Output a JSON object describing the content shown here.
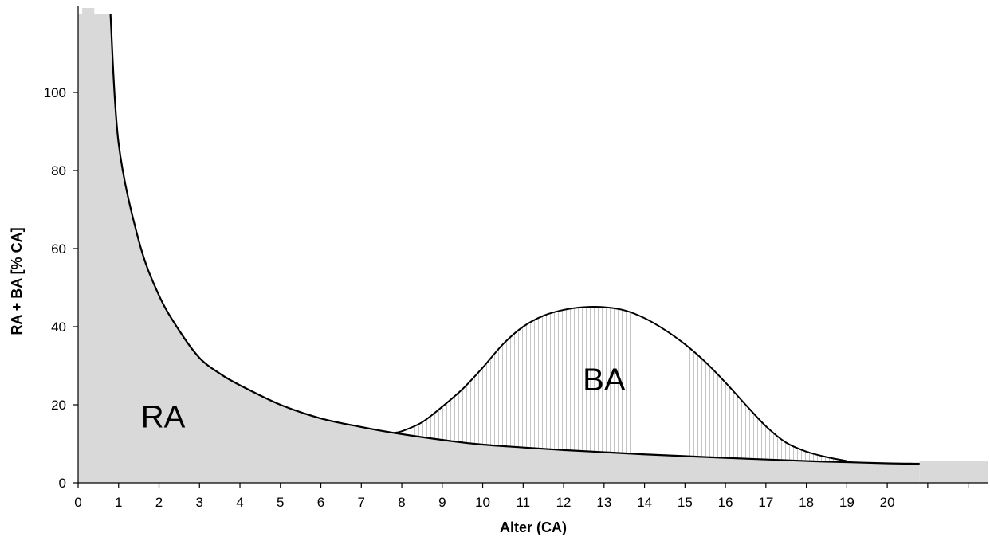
{
  "chart_data": {
    "type": "area",
    "xlabel": "Alter (CA)",
    "ylabel": "RA + BA [% CA]",
    "xlim": [
      0,
      22.5
    ],
    "ylim": [
      0,
      120
    ],
    "xticks": [
      0,
      1,
      2,
      3,
      4,
      5,
      6,
      7,
      8,
      9,
      10,
      11,
      12,
      13,
      14,
      15,
      16,
      17,
      18,
      19,
      20
    ],
    "xminor_ticks": [
      21,
      22
    ],
    "yticks": [
      0,
      20,
      40,
      60,
      80,
      100
    ],
    "grid": false,
    "legend": "none",
    "annotations": [
      {
        "text": "RA",
        "x": 2.1,
        "y": 17
      },
      {
        "text": "BA",
        "x": 13.0,
        "y": 26.5
      }
    ],
    "series": [
      {
        "name": "RA",
        "fill": "#d9d9d9",
        "x": [
          0.0,
          0.8,
          1.0,
          1.5,
          2.0,
          2.5,
          3.0,
          3.5,
          4.0,
          5.0,
          6.0,
          7.0,
          7.8,
          9.0,
          10.0,
          12.0,
          14.0,
          16.0,
          18.0,
          19.0,
          20.0,
          20.8
        ],
        "values": [
          120,
          120,
          87,
          62,
          48,
          39,
          32,
          28,
          25,
          20,
          16.5,
          14.3,
          12.8,
          11.0,
          9.8,
          8.4,
          7.3,
          6.4,
          5.6,
          5.3,
          5.0,
          4.9
        ]
      },
      {
        "name": "BA",
        "fill": "hatch-vertical",
        "x": [
          7.8,
          8.0,
          8.5,
          9.0,
          9.5,
          10.0,
          10.5,
          11.0,
          11.5,
          12.0,
          12.5,
          13.0,
          13.5,
          14.0,
          14.5,
          15.0,
          15.5,
          16.0,
          16.5,
          17.0,
          17.5,
          18.0,
          18.5,
          19.0
        ],
        "values": [
          12.8,
          13.2,
          15.5,
          19.5,
          24,
          29.5,
          35.5,
          40,
          42.8,
          44.3,
          45,
          45,
          44.2,
          42.2,
          39.2,
          35.5,
          31,
          25.7,
          20,
          14.5,
          10.3,
          8.0,
          6.6,
          5.6
        ]
      }
    ],
    "extra_gray_band": {
      "x": [
        20.8,
        22.5
      ],
      "y": [
        0,
        5.5
      ]
    },
    "top_box": {
      "x": [
        0.1,
        0.4
      ],
      "y": [
        118,
        120
      ]
    }
  }
}
